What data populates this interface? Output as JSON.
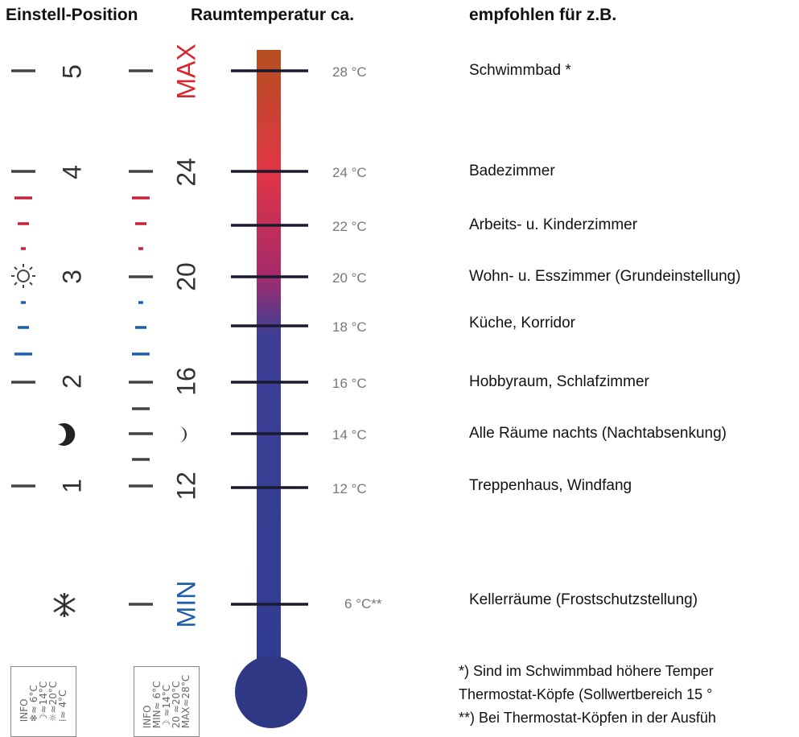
{
  "header": {
    "position_title": "Einstell-Position",
    "room_temp_title": "Raumtemperatur ca.",
    "recommended_title": "empfohlen für z.B."
  },
  "dial_positions": [
    "5",
    "4",
    "3",
    "2",
    "1"
  ],
  "dial_labels": {
    "max": "MAX",
    "min": "MIN",
    "v24": "24",
    "v20": "20",
    "v16": "16",
    "v12": "12"
  },
  "temperatures": [
    "28 °C",
    "24 °C",
    "22 °C",
    "20 °C",
    "18 °C",
    "16 °C",
    "14 °C",
    "12 °C",
    "6 °C**"
  ],
  "recommendations": [
    "Schwimmbad *",
    "Badezimmer",
    "Arbeits- u. Kinderzimmer",
    "Wohn- u. Esszimmer (Grundeinstellung)",
    "Küche, Korridor",
    "Hobbyraum, Schlafzimmer",
    "Alle Räume nachts (Nachtabsenkung)",
    "Treppenhaus, Windfang",
    "Kellerräume (Frostschutzstellung)"
  ],
  "footnotes": [
    "*) Sind im Schwimmbad höhere Temper",
    "Thermostat-Köpfe (Sollwertbereich 15 °",
    "**) Bei Thermostat-Köpfen in der Ausfüh"
  ],
  "info_left": [
    "INFO",
    "❄≈ 6°C",
    "☽≈14°C",
    "☼≈20°C",
    "⁞≈ 4°C"
  ],
  "info_right": [
    "INFO",
    "MIN≈ 6°C",
    "☽ ≈14°C",
    "20 ≈20°C",
    "MAX≈28°C"
  ],
  "icons": {
    "sun": "sun-icon",
    "moon": "moon-icon",
    "snowflake": "snowflake-icon"
  },
  "colors": {
    "hot": "#e63946",
    "warm_red": "#d62f45",
    "cold_blue": "#1f5ea8",
    "mercury_bottom": "#2e3d8f",
    "mercury_top": "#b5501f"
  }
}
